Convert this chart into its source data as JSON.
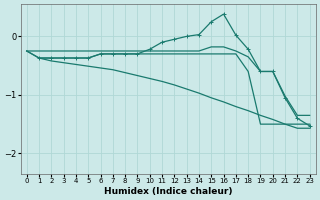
{
  "background_color": "#cce9e8",
  "grid_color": "#b0d8d6",
  "line_color": "#1a7a6e",
  "xlabel": "Humidex (Indice chaleur)",
  "xlim": [
    -0.5,
    23.5
  ],
  "ylim": [
    -2.35,
    0.55
  ],
  "yticks": [
    0,
    -1,
    -2
  ],
  "xticks": [
    0,
    1,
    2,
    3,
    4,
    5,
    6,
    7,
    8,
    9,
    10,
    11,
    12,
    13,
    14,
    15,
    16,
    17,
    18,
    19,
    20,
    21,
    22,
    23
  ],
  "series": [
    {
      "x": [
        0,
        1,
        2,
        3,
        4,
        5,
        6,
        7,
        8,
        9,
        10,
        11,
        12,
        13,
        14,
        15,
        16,
        17,
        18,
        19,
        20,
        21,
        22,
        23
      ],
      "y": [
        -0.25,
        -0.25,
        -0.25,
        -0.25,
        -0.25,
        -0.25,
        -0.25,
        -0.25,
        -0.25,
        -0.25,
        -0.25,
        -0.25,
        -0.25,
        -0.25,
        -0.25,
        -0.18,
        -0.18,
        -0.25,
        -0.35,
        -0.6,
        -0.6,
        -1.02,
        -1.35,
        -1.35
      ],
      "marker": null,
      "lw": 0.9
    },
    {
      "x": [
        0,
        1,
        2,
        3,
        4,
        5,
        6,
        7,
        8,
        9,
        10,
        11,
        12,
        13,
        14,
        15,
        16,
        17,
        18,
        19,
        20,
        21,
        22,
        23
      ],
      "y": [
        -0.25,
        -0.37,
        -0.37,
        -0.37,
        -0.37,
        -0.37,
        -0.3,
        -0.3,
        -0.3,
        -0.3,
        -0.3,
        -0.3,
        -0.3,
        -0.3,
        -0.3,
        -0.3,
        -0.3,
        -0.3,
        -0.6,
        -1.5,
        -1.5,
        -1.5,
        -1.5,
        -1.5
      ],
      "marker": null,
      "lw": 0.9
    },
    {
      "x": [
        0,
        1,
        2,
        3,
        4,
        5,
        6,
        7,
        8,
        9,
        10,
        11,
        12,
        13,
        14,
        15,
        16,
        17,
        18,
        19,
        20,
        21,
        22,
        23
      ],
      "y": [
        -0.25,
        -0.37,
        -0.42,
        -0.45,
        -0.48,
        -0.51,
        -0.54,
        -0.57,
        -0.62,
        -0.67,
        -0.72,
        -0.77,
        -0.83,
        -0.9,
        -0.97,
        -1.05,
        -1.12,
        -1.2,
        -1.27,
        -1.35,
        -1.42,
        -1.5,
        -1.57,
        -1.57
      ],
      "marker": null,
      "lw": 0.9
    },
    {
      "x": [
        1,
        2,
        3,
        4,
        5,
        6,
        7,
        8,
        9,
        10,
        11,
        12,
        13,
        14,
        15,
        16,
        17,
        18,
        19,
        20,
        21,
        22,
        23
      ],
      "y": [
        -0.37,
        -0.37,
        -0.37,
        -0.37,
        -0.37,
        -0.3,
        -0.3,
        -0.3,
        -0.3,
        -0.22,
        -0.1,
        -0.05,
        0.0,
        0.03,
        0.25,
        0.38,
        0.02,
        -0.22,
        -0.6,
        -0.6,
        -1.05,
        -1.4,
        -1.53
      ],
      "marker": "+",
      "lw": 0.9
    }
  ]
}
